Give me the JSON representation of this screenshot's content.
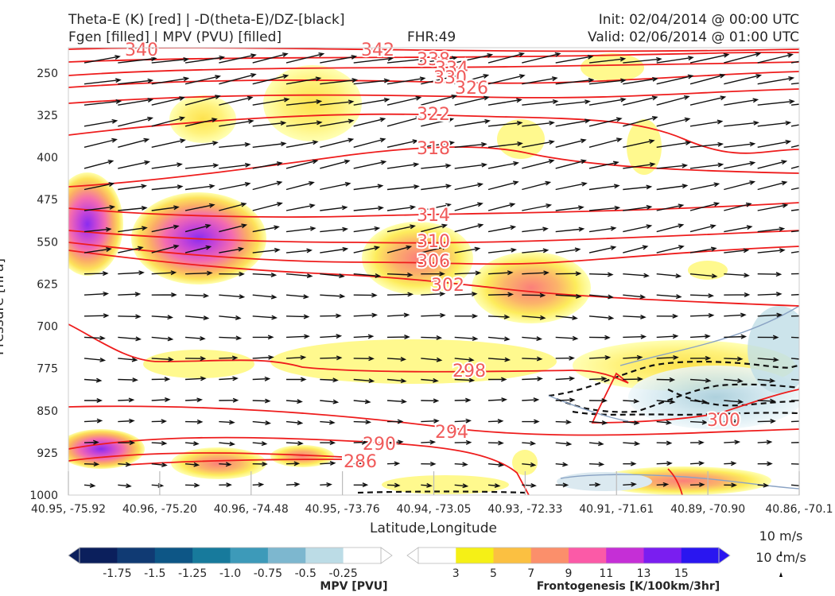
{
  "header": {
    "title_line1": "Theta-E (K) [red] | -D(theta-E)/DZ-[black]",
    "title_line2": "Fgen [filled] | MPV (PVU) [filled]",
    "fhr": "FHR:49",
    "init": "Init: 02/04/2014 @ 00:00 UTC",
    "valid": "Valid: 02/06/2014 @ 01:00 UTC"
  },
  "chart_data": {
    "type": "cross-section",
    "xlabel": "Latitude,Longitude",
    "ylabel": "Pressure [hPa]",
    "y_ticks": [
      250,
      325,
      400,
      475,
      550,
      625,
      700,
      775,
      850,
      925,
      1000
    ],
    "ylim": [
      1000,
      205
    ],
    "x_ticks": [
      "40.95, -75.92",
      "40.96, -75.20",
      "40.96, -74.48",
      "40.95, -73.76",
      "40.94, -73.05",
      "40.93, -72.33",
      "40.91, -71.61",
      "40.89, -70.90",
      "40.86, -70.1"
    ],
    "theta_e_contours": [
      {
        "label": "340"
      },
      {
        "label": "342"
      },
      {
        "label": "338"
      },
      {
        "label": "334"
      },
      {
        "label": "330"
      },
      {
        "label": "326"
      },
      {
        "label": "322"
      },
      {
        "label": "318"
      },
      {
        "label": "314"
      },
      {
        "label": "310"
      },
      {
        "label": "306"
      },
      {
        "label": "302"
      },
      {
        "label": "298"
      },
      {
        "label": "294"
      },
      {
        "label": "290"
      },
      {
        "label": "286"
      },
      {
        "label": "300"
      }
    ],
    "vector_reference": {
      "horizontal": "10 m/s",
      "vertical": "10 cm/s"
    },
    "mpv_colorbar": {
      "label": "MPV [PVU]",
      "ticks": [
        "-1.75",
        "-1.5",
        "-1.25",
        "-1.0",
        "-0.75",
        "-0.5",
        "-0.25"
      ],
      "colors": [
        "#0b1f5c",
        "#103a73",
        "#0d5686",
        "#177a9c",
        "#3d9ab9",
        "#7db7cf",
        "#bcdce6",
        "#ffffff"
      ]
    },
    "fgen_colorbar": {
      "label": "Frontogenesis [K/100km/3hr]",
      "ticks": [
        "3",
        "5",
        "7",
        "9",
        "11",
        "13",
        "15"
      ],
      "colors": [
        "#ffffff",
        "#f5f016",
        "#fbc041",
        "#fb8f6b",
        "#fb5aa7",
        "#c52fd6",
        "#7a1ef0",
        "#2a16f0"
      ]
    }
  }
}
